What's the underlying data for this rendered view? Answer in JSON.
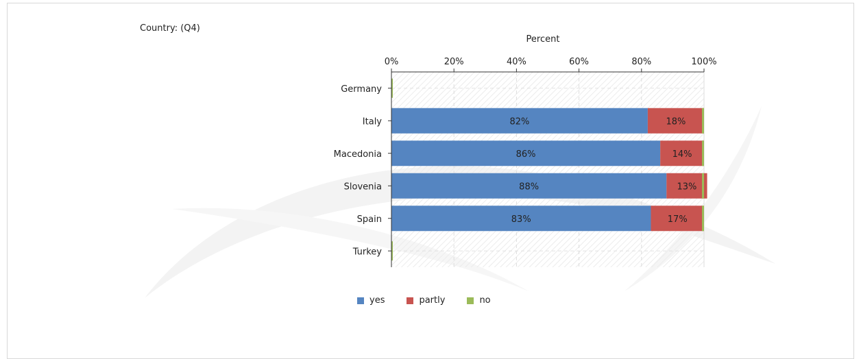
{
  "header": {
    "filter_label": "Country: (Q4)"
  },
  "colors": {
    "yes": "#5585c1",
    "partly": "#c85450",
    "no": "#9bbb59"
  },
  "chart_data": {
    "type": "bar",
    "orientation": "horizontal",
    "stacked": true,
    "title": "",
    "xlabel": "Percent",
    "ylabel": "",
    "xlim": [
      0,
      100
    ],
    "x_ticks": [
      "0%",
      "20%",
      "40%",
      "60%",
      "80%",
      "100%"
    ],
    "grid": true,
    "legend_position": "bottom",
    "categories": [
      "Germany",
      "Italy",
      "Macedonia",
      "Slovenia",
      "Spain",
      "Turkey"
    ],
    "series": [
      {
        "name": "yes",
        "values": [
          0,
          82,
          86,
          88,
          83,
          0
        ],
        "labels": [
          "",
          "82%",
          "86%",
          "88%",
          "83%",
          ""
        ]
      },
      {
        "name": "partly",
        "values": [
          0,
          18,
          14,
          13,
          17,
          0
        ],
        "labels": [
          "",
          "18%",
          "14%",
          "13%",
          "17%",
          ""
        ]
      },
      {
        "name": "no",
        "values": [
          0,
          0,
          0,
          0,
          0,
          0
        ],
        "labels": [
          "",
          "",
          "",
          "",
          "",
          ""
        ]
      }
    ]
  }
}
